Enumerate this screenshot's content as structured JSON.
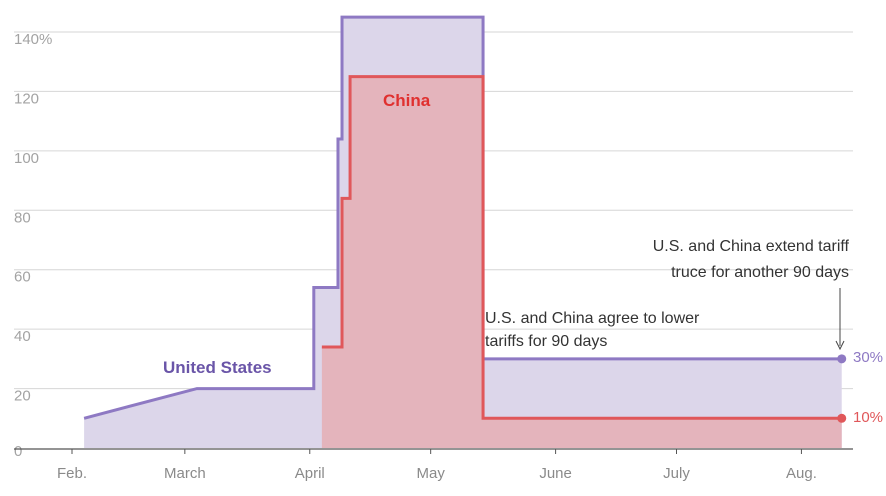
{
  "chart_data": {
    "type": "area",
    "x_ticks": [
      "Feb.",
      "March",
      "April",
      "May",
      "June",
      "July",
      "Aug."
    ],
    "y_ticks": [
      "140%",
      "120",
      "100",
      "80",
      "60",
      "40",
      "20",
      "0"
    ],
    "ylim": [
      0,
      145
    ],
    "grid": true,
    "series": [
      {
        "name": "United States",
        "color": "#8e79c3",
        "fill": "#dcd6ea",
        "end_label": "30%",
        "points": [
          [
            "2025-02-04",
            10
          ],
          [
            "2025-03-04",
            20
          ],
          [
            "2025-04-02",
            20
          ],
          [
            "2025-04-02",
            54
          ],
          [
            "2025-04-08",
            54
          ],
          [
            "2025-04-08",
            104
          ],
          [
            "2025-04-09",
            104
          ],
          [
            "2025-04-09",
            145
          ],
          [
            "2025-05-14",
            145
          ],
          [
            "2025-05-14",
            30
          ],
          [
            "2025-08-11",
            30
          ]
        ]
      },
      {
        "name": "China",
        "color": "#e0575a",
        "fill": "#e4b4bc",
        "end_label": "10%",
        "points": [
          [
            "2025-04-04",
            34
          ],
          [
            "2025-04-09",
            34
          ],
          [
            "2025-04-09",
            84
          ],
          [
            "2025-04-11",
            84
          ],
          [
            "2025-04-11",
            125
          ],
          [
            "2025-05-14",
            125
          ],
          [
            "2025-05-14",
            10
          ],
          [
            "2025-08-11",
            10
          ]
        ]
      }
    ],
    "annotations": [
      {
        "lines": [
          "U.S. and China agree to lower",
          "tariffs for 90 days"
        ]
      },
      {
        "lines": [
          "U.S. and China extend tariff",
          "truce for another 90 days"
        ]
      }
    ]
  }
}
